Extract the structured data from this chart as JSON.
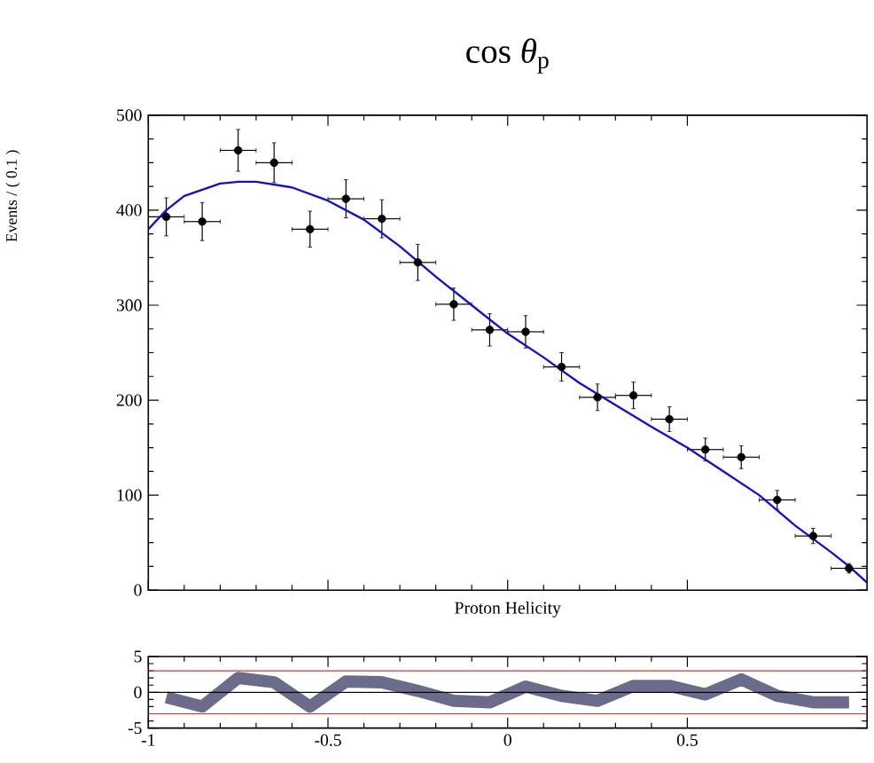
{
  "chart_data": [
    {
      "type": "scatter",
      "title": "cos *θ*$_{p}$",
      "xlabel": "Proton Helicity",
      "ylabel": "Events / ( 0.1 )",
      "xlim": [
        -1,
        1
      ],
      "ylim": [
        0,
        500
      ],
      "xticks": [
        -1,
        -0.5,
        0,
        0.5
      ],
      "yticks": [
        0,
        100,
        200,
        300,
        400,
        500
      ],
      "tick_labels": "y",
      "series": [
        {
          "type": "scatter",
          "color": "#000000",
          "marker": "circle",
          "x": [
            -0.95,
            -0.85,
            -0.75,
            -0.65,
            -0.55,
            -0.45,
            -0.35,
            -0.25,
            -0.15,
            -0.05,
            0.05,
            0.15,
            0.25,
            0.35,
            0.45,
            0.55,
            0.65,
            0.75,
            0.85,
            0.95
          ],
          "values": [
            393,
            388,
            463,
            450,
            380,
            412,
            391,
            345,
            301,
            274,
            272,
            235,
            203,
            205,
            180,
            148,
            140,
            95,
            57,
            23
          ],
          "errors": [
            20,
            20,
            22,
            21,
            19,
            20,
            20,
            19,
            17,
            17,
            17,
            15,
            14,
            14,
            13,
            12,
            12,
            10,
            8,
            5
          ],
          "xerrors": [
            0.05,
            0.05,
            0.05,
            0.05,
            0.05,
            0.05,
            0.05,
            0.05,
            0.05,
            0.05,
            0.05,
            0.05,
            0.05,
            0.05,
            0.05,
            0.05,
            0.05,
            0.05,
            0.05,
            0.05
          ]
        },
        {
          "type": "line",
          "color": "#1010d0",
          "marker": "none",
          "x": [
            -1,
            -0.95,
            -0.9,
            -0.8,
            -0.75,
            -0.7,
            -0.6,
            -0.5,
            -0.4,
            -0.3,
            -0.2,
            -0.1,
            0,
            0.1,
            0.2,
            0.3,
            0.4,
            0.5,
            0.6,
            0.7,
            0.8,
            0.9,
            0.95,
            1
          ],
          "values": [
            380,
            400,
            415,
            428,
            430,
            430,
            424,
            410,
            390,
            362,
            330,
            300,
            270,
            245,
            218,
            195,
            172,
            150,
            125,
            100,
            68,
            40,
            25,
            8
          ]
        }
      ]
    },
    {
      "type": "line",
      "xlim": [
        -1,
        1
      ],
      "ylim": [
        -5,
        5
      ],
      "xticks": [
        -1,
        -0.5,
        0,
        0.5
      ],
      "yticks": [
        -5,
        0,
        5
      ],
      "series": [
        {
          "color": "#6b6b8c",
          "x": [
            -0.95,
            -0.85,
            -0.75,
            -0.65,
            -0.55,
            -0.45,
            -0.35,
            -0.25,
            -0.15,
            -0.05,
            0.05,
            0.15,
            0.25,
            0.35,
            0.45,
            0.55,
            0.65,
            0.75,
            0.85,
            0.95
          ],
          "values": [
            -0.7,
            -2.0,
            2.0,
            1.4,
            -2.0,
            1.5,
            1.4,
            0.2,
            -1.2,
            -1.4,
            0.8,
            -0.5,
            -1.2,
            0.9,
            0.9,
            -0.3,
            1.8,
            -0.5,
            -1.4,
            -1.4
          ]
        }
      ],
      "ref_lines": [
        {
          "axis": "y",
          "value": 0,
          "color": "#000000"
        },
        {
          "axis": "y",
          "value": 3,
          "color": "#e03030"
        },
        {
          "axis": "y",
          "value": -3,
          "color": "#e03030"
        }
      ]
    }
  ]
}
